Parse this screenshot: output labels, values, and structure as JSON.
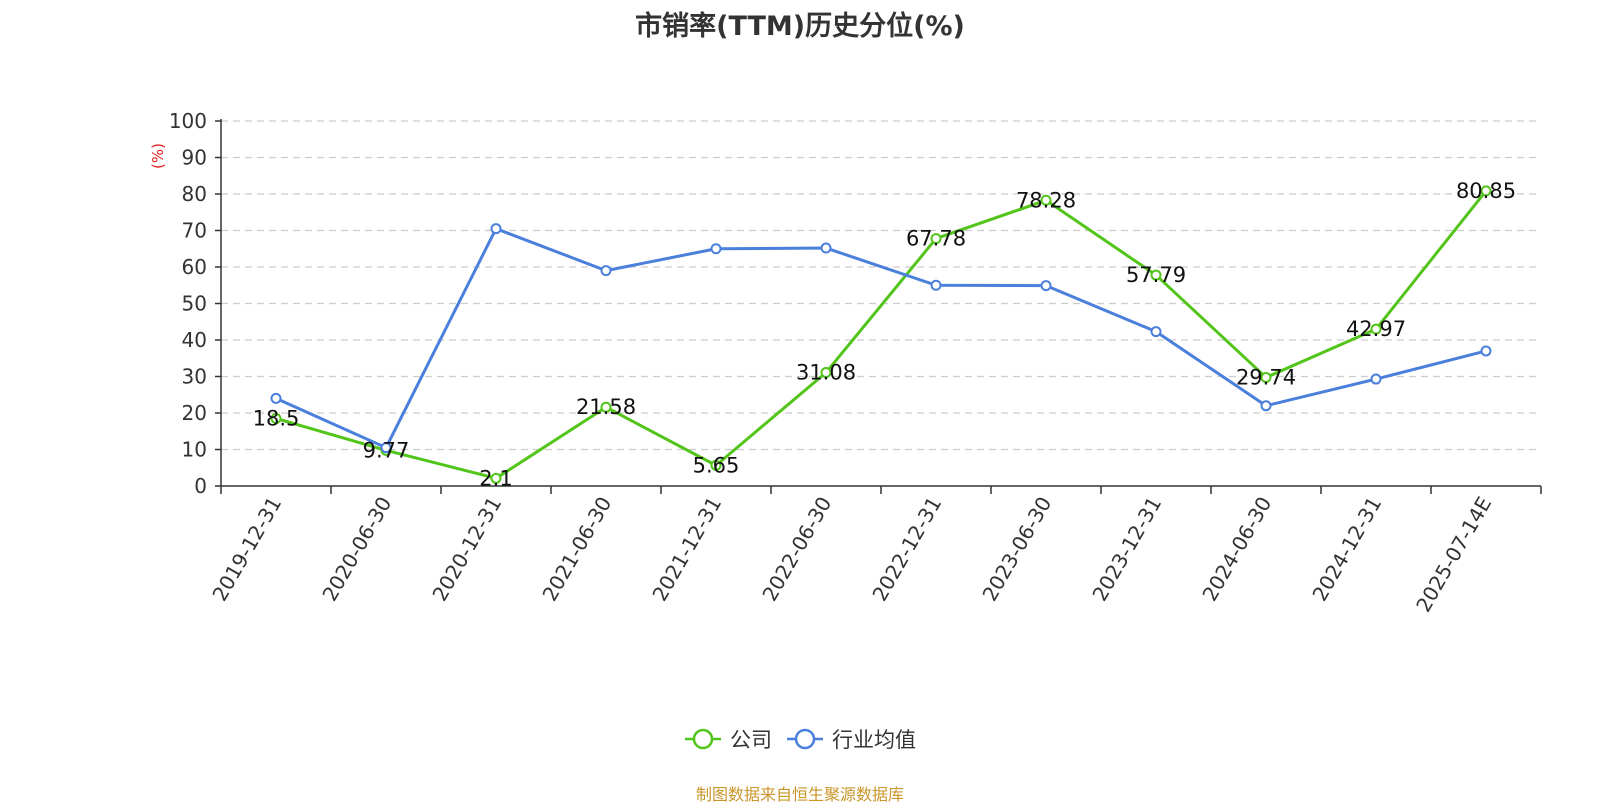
{
  "chart_data": {
    "type": "line",
    "title": "市销率(TTM)历史分位(%)",
    "ylabel": "(%)",
    "ylim": [
      0,
      100
    ],
    "yticks": [
      0,
      10,
      20,
      30,
      40,
      50,
      60,
      70,
      80,
      90,
      100
    ],
    "categories": [
      "2019-12-31",
      "2020-06-30",
      "2020-12-31",
      "2021-06-30",
      "2021-12-31",
      "2022-06-30",
      "2022-12-31",
      "2023-06-30",
      "2023-12-31",
      "2024-06-30",
      "2024-12-31",
      "2025-07-14E"
    ],
    "series": [
      {
        "name": "公司",
        "color": "#52c41a",
        "values": [
          18.5,
          9.77,
          2.1,
          21.58,
          5.65,
          31.08,
          67.78,
          78.28,
          57.79,
          29.74,
          42.97,
          80.85
        ],
        "show_labels": true
      },
      {
        "name": "行业均值",
        "color": "#4a7fdc",
        "values": [
          24,
          10.5,
          70.5,
          59,
          65,
          65.2,
          55,
          54.9,
          42.3,
          22,
          29.3,
          37
        ],
        "show_labels": false
      }
    ],
    "grid": true,
    "legend_position": "bottom-center",
    "ylabel_color": "#e02020"
  },
  "footer": {
    "source": "制图数据来自恒生聚源数据库"
  }
}
